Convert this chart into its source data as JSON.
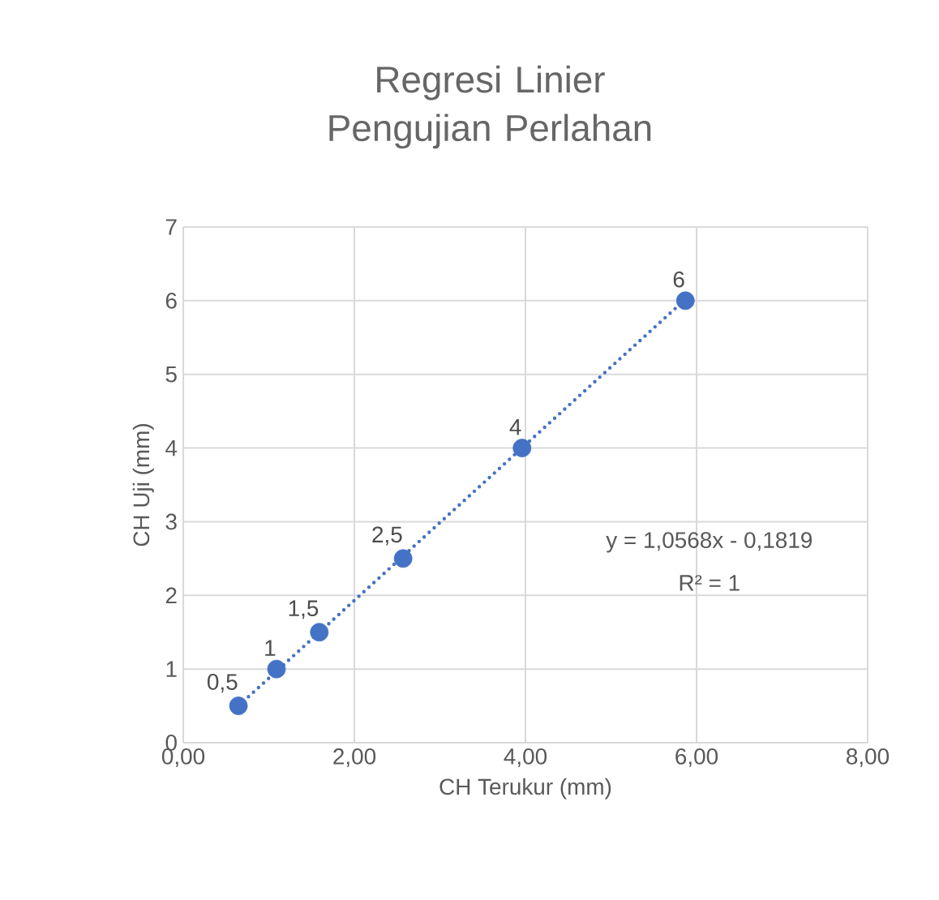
{
  "chart_data": {
    "type": "scatter",
    "title": "Regresi Linier Pengujian Perlahan",
    "xlabel": "CH Terukur (mm)",
    "ylabel": "CH Uji (mm)",
    "xlim": [
      0,
      8
    ],
    "xticks": [
      {
        "value": 0,
        "label": "0,00"
      },
      {
        "value": 2,
        "label": "2,00"
      },
      {
        "value": 4,
        "label": "4,00"
      },
      {
        "value": 6,
        "label": "6,00"
      },
      {
        "value": 8,
        "label": "8,00"
      }
    ],
    "ylim": [
      0,
      7
    ],
    "yticks": [
      0,
      1,
      2,
      3,
      4,
      5,
      6,
      7
    ],
    "grid": true,
    "marker": "circle",
    "annotations": [
      "y = 1,0568x - 0,1819",
      "R² = 1"
    ],
    "series": [
      {
        "type": "scatter",
        "color": "#4472c4",
        "x": [
          0.645,
          1.09,
          1.59,
          2.57,
          3.96,
          5.87
        ],
        "values": [
          0.5,
          1,
          1.5,
          2.5,
          4,
          6
        ],
        "value_labels": [
          "0,5",
          "1",
          "1,5",
          "2,5",
          "4",
          "6"
        ]
      },
      {
        "type": "line",
        "marker": "none",
        "color": "#4472c4",
        "line_style": "dotted",
        "x": [
          0.645,
          5.87
        ],
        "values": [
          0.5,
          6.02
        ]
      }
    ]
  }
}
